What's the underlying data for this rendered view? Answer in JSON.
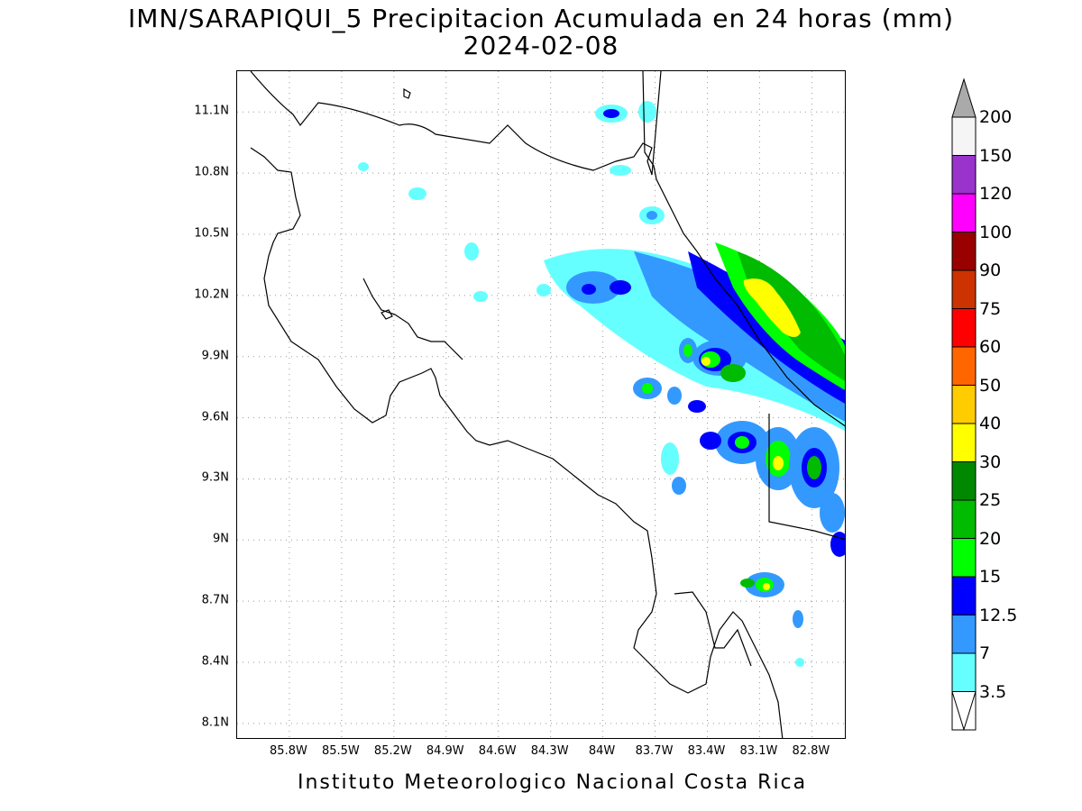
{
  "title": {
    "line1": "IMN/SARAPIQUI_5 Precipitacion Acumulada en 24 horas (mm)",
    "line2": "2024-02-08"
  },
  "footer": "Instituto Meteorologico Nacional Costa Rica",
  "axes": {
    "lat_ticks": [
      "11.1N",
      "10.8N",
      "10.5N",
      "10.2N",
      "9.9N",
      "9.6N",
      "9.3N",
      "9N",
      "8.7N",
      "8.4N",
      "8.1N"
    ],
    "lat_values": [
      11.1,
      10.8,
      10.5,
      10.2,
      9.9,
      9.6,
      9.3,
      9.0,
      8.7,
      8.4,
      8.1
    ],
    "lon_ticks": [
      "85.8W",
      "85.5W",
      "85.2W",
      "84.9W",
      "84.6W",
      "84.3W",
      "84W",
      "83.7W",
      "83.4W",
      "83.1W",
      "82.8W"
    ],
    "lon_values": [
      -85.8,
      -85.5,
      -85.2,
      -84.9,
      -84.6,
      -84.3,
      -84.0,
      -83.7,
      -83.4,
      -83.1,
      -82.8
    ],
    "lon_range": [
      -86.1,
      -82.6
    ],
    "lat_range": [
      8.02,
      11.3
    ],
    "grid": "dotted"
  },
  "legend": {
    "levels": [
      {
        "label": "200",
        "color": "#f5f5f5"
      },
      {
        "label": "150",
        "color": "#9933cc"
      },
      {
        "label": "120",
        "color": "#ff00ff"
      },
      {
        "label": "100",
        "color": "#990000"
      },
      {
        "label": "90",
        "color": "#cc3300"
      },
      {
        "label": "75",
        "color": "#ff0000"
      },
      {
        "label": "60",
        "color": "#ff6600"
      },
      {
        "label": "50",
        "color": "#ffcc00"
      },
      {
        "label": "40",
        "color": "#ffff00"
      },
      {
        "label": "30",
        "color": "#008800"
      },
      {
        "label": "25",
        "color": "#00bb00"
      },
      {
        "label": "20",
        "color": "#00ff00"
      },
      {
        "label": "15",
        "color": "#0000ff"
      },
      {
        "label": "12.5",
        "color": "#3399ff"
      },
      {
        "label": "7",
        "color": "#66ffff"
      },
      {
        "label": "3.5",
        "color": "#ffffff"
      }
    ],
    "top_arrow_color": "#aaaaaa",
    "bottom_arrow_color": "#ffffff"
  },
  "precipitation_colors": {
    "light": "#66ffff",
    "moderate": "#3399ff",
    "strong": "#0000ff",
    "heavy": "#00ff00",
    "very_heavy": "#00bb00",
    "peak": "#ffff00"
  }
}
